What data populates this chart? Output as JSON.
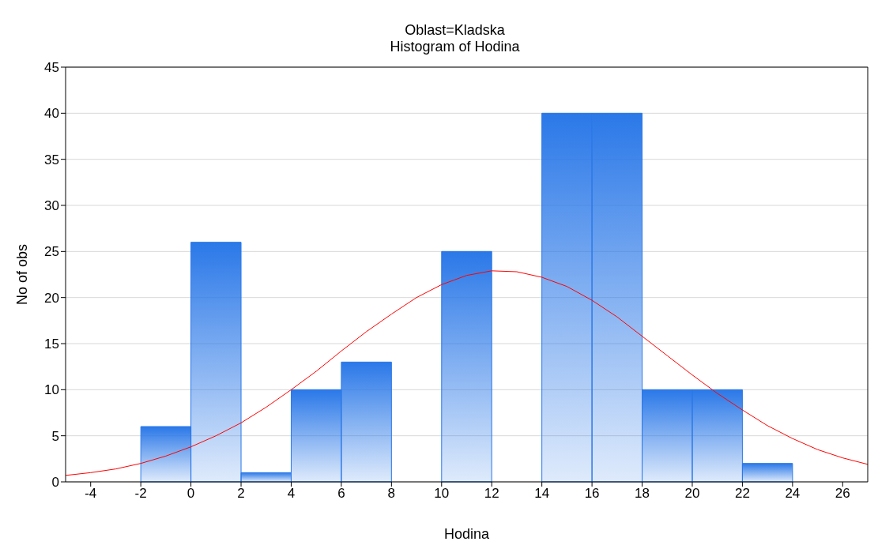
{
  "chart_data": {
    "type": "histogram",
    "title": "Oblast=Kladska",
    "subtitle": "Histogram of Hodina",
    "xlabel": "Hodina",
    "ylabel": "No of obs",
    "bins": [
      -2,
      0,
      2,
      4,
      6,
      8,
      10,
      12,
      14,
      16,
      18,
      20,
      22,
      24
    ],
    "values": [
      6,
      26,
      1,
      10,
      13,
      0,
      25,
      0,
      40,
      40,
      10,
      10,
      2
    ],
    "color": "#2a78e8",
    "series": [
      {
        "type": "line",
        "color": "#ff0000",
        "x": [
          -5,
          -4,
          -3,
          -2,
          -1,
          0,
          1,
          2,
          3,
          4,
          5,
          6,
          7,
          8,
          9,
          10,
          11,
          12,
          13,
          14,
          15,
          16,
          17,
          18,
          19,
          20,
          21,
          22,
          23,
          24,
          25,
          26,
          27
        ],
        "values": [
          0.7,
          1.0,
          1.4,
          2.0,
          2.8,
          3.8,
          5.0,
          6.4,
          8.1,
          10.0,
          12.0,
          14.2,
          16.3,
          18.2,
          20.0,
          21.4,
          22.4,
          22.9,
          22.8,
          22.2,
          21.2,
          19.7,
          17.9,
          15.8,
          13.7,
          11.6,
          9.6,
          7.8,
          6.1,
          4.7,
          3.5,
          2.6,
          1.9
        ]
      }
    ],
    "xlim": [
      -5,
      27
    ],
    "xticks": [
      -4,
      -2,
      0,
      2,
      4,
      6,
      8,
      10,
      12,
      14,
      16,
      18,
      20,
      22,
      24,
      26
    ],
    "ylim": [
      0,
      45
    ],
    "yticks": [
      0,
      5,
      10,
      15,
      20,
      25,
      30,
      35,
      40,
      45
    ],
    "grid": "y"
  }
}
